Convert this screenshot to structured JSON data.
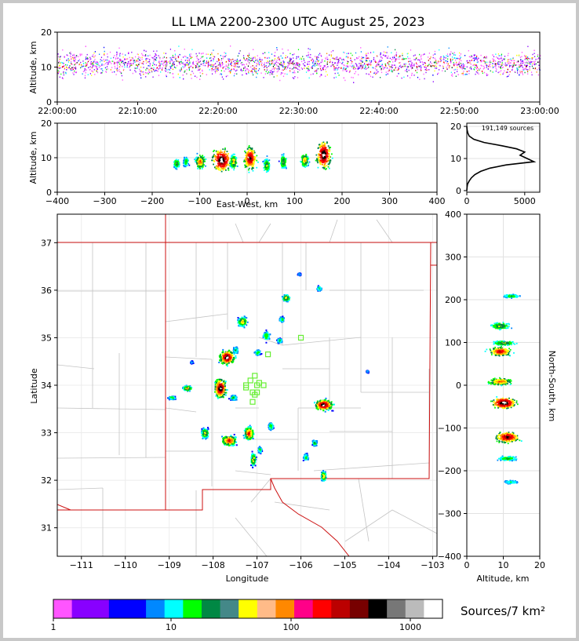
{
  "title": "LL LMA 2200-2300 UTC August 25, 2023",
  "colorbar": {
    "label": "Sources/7 km²",
    "tick_labels": [
      "1",
      "10",
      "100",
      "1000"
    ],
    "colors": [
      "#ff55ff",
      "#8800ff",
      "#8800ff",
      "#0000ff",
      "#0000ff",
      "#0088ff",
      "#00ffff",
      "#00ff00",
      "#008844",
      "#448888",
      "#ffff00",
      "#ffbb88",
      "#ff8800",
      "#ff0088",
      "#ff0000",
      "#bb0000",
      "#770000",
      "#000000",
      "#777777",
      "#bbbbbb",
      "#ffffff"
    ]
  },
  "chart_data": [
    {
      "type": "heatmap",
      "name": "time-altitude",
      "ylabel": "Altitude, km",
      "ylim": [
        0,
        20
      ],
      "y_ticks": [
        "0",
        "10",
        "20"
      ],
      "x_ticks": [
        "22:00:00",
        "22:10:00",
        "22:20:00",
        "22:30:00",
        "22:40:00",
        "22:50:00",
        "23:00:00"
      ]
    },
    {
      "type": "heatmap",
      "name": "east-west-altitude",
      "xlabel": "East-West, km",
      "ylabel": "Altitude, km",
      "xlim": [
        -400,
        400
      ],
      "ylim": [
        0,
        20
      ],
      "x_ticks": [
        "−400",
        "−300",
        "−200",
        "−100",
        "0",
        "100",
        "200",
        "300",
        "400"
      ],
      "y_ticks": [
        "0",
        "10",
        "20"
      ]
    },
    {
      "type": "line",
      "name": "altitude-histogram",
      "annotation": "191,149 sources",
      "x_ticks": [
        "0",
        "5000"
      ],
      "y_ticks": [
        "0",
        "10",
        "20"
      ],
      "xlim": [
        0,
        6300
      ],
      "ylim": [
        -0.5,
        21
      ],
      "points": [
        [
          0,
          0
        ],
        [
          20,
          1
        ],
        [
          60,
          2
        ],
        [
          200,
          3
        ],
        [
          400,
          4
        ],
        [
          700,
          5
        ],
        [
          1200,
          6
        ],
        [
          2000,
          7
        ],
        [
          3400,
          8
        ],
        [
          5800,
          9
        ],
        [
          5200,
          10
        ],
        [
          4600,
          11
        ],
        [
          5000,
          12
        ],
        [
          4300,
          13
        ],
        [
          3000,
          14
        ],
        [
          1500,
          15
        ],
        [
          600,
          16
        ],
        [
          200,
          17
        ],
        [
          80,
          18
        ],
        [
          20,
          19
        ],
        [
          0,
          20
        ]
      ]
    },
    {
      "type": "heatmap",
      "name": "plan-view",
      "xlabel": "Longitude",
      "ylabel": "Latitude",
      "xlim": [
        -111.55,
        -102.9
      ],
      "ylim": [
        30.4,
        37.6
      ],
      "x_ticks": [
        "−111",
        "−110",
        "−109",
        "−108",
        "−107",
        "−106",
        "−105",
        "−104",
        "−103"
      ],
      "y_ticks": [
        "31",
        "32",
        "33",
        "34",
        "35",
        "36",
        "37"
      ],
      "stations": [
        [
          -107.25,
          33.95
        ],
        [
          -107.15,
          34.1
        ],
        [
          -107.0,
          34.0
        ],
        [
          -107.05,
          34.2
        ],
        [
          -106.85,
          34.0
        ],
        [
          -107.1,
          33.85
        ],
        [
          -107.25,
          34.0
        ],
        [
          -107.0,
          33.85
        ],
        [
          -106.95,
          34.05
        ],
        [
          -107.05,
          33.8
        ],
        [
          -107.1,
          33.65
        ],
        [
          -106.75,
          34.65
        ],
        [
          -106.0,
          35.0
        ]
      ],
      "cells": [
        [
          -107.7,
          34.6,
          0.25,
          0.22,
          5
        ],
        [
          -107.85,
          33.95,
          0.2,
          0.3,
          5
        ],
        [
          -105.5,
          33.6,
          0.3,
          0.16,
          5
        ],
        [
          -107.65,
          32.85,
          0.25,
          0.16,
          4
        ],
        [
          -107.2,
          33.0,
          0.15,
          0.2,
          4
        ],
        [
          -108.2,
          33.0,
          0.12,
          0.15,
          3
        ],
        [
          -107.35,
          35.35,
          0.15,
          0.15,
          3
        ],
        [
          -108.6,
          33.95,
          0.15,
          0.08,
          3
        ],
        [
          -108.95,
          33.75,
          0.12,
          0.05,
          2
        ],
        [
          -107.1,
          32.45,
          0.08,
          0.2,
          3
        ],
        [
          -106.8,
          35.05,
          0.12,
          0.15,
          2
        ],
        [
          -106.35,
          35.85,
          0.12,
          0.1,
          3
        ],
        [
          -105.6,
          36.05,
          0.07,
          0.07,
          2
        ],
        [
          -106.45,
          35.4,
          0.08,
          0.08,
          2
        ],
        [
          -106.5,
          34.95,
          0.08,
          0.07,
          2
        ],
        [
          -105.5,
          32.1,
          0.08,
          0.15,
          3
        ],
        [
          -105.7,
          32.8,
          0.08,
          0.1,
          2
        ],
        [
          -105.9,
          32.5,
          0.08,
          0.1,
          2
        ],
        [
          -107.55,
          33.75,
          0.12,
          0.08,
          2
        ],
        [
          -107.0,
          34.7,
          0.1,
          0.08,
          2
        ],
        [
          -107.5,
          34.75,
          0.08,
          0.1,
          2
        ],
        [
          -106.7,
          33.15,
          0.08,
          0.12,
          2
        ],
        [
          -106.95,
          32.65,
          0.06,
          0.1,
          2
        ],
        [
          -108.5,
          34.5,
          0.05,
          0.04,
          1
        ],
        [
          -104.5,
          34.3,
          0.04,
          0.04,
          1
        ],
        [
          -106.05,
          36.35,
          0.05,
          0.04,
          1
        ]
      ]
    },
    {
      "type": "heatmap",
      "name": "altitude-north-south",
      "xlabel": "Altitude, km",
      "ylabel": "North-South, km",
      "xlim": [
        0,
        20
      ],
      "ylim": [
        -400,
        400
      ],
      "x_ticks": [
        "0",
        "10",
        "20"
      ],
      "y_ticks": [
        "−400",
        "−300",
        "−200",
        "−100",
        "0",
        "100",
        "200",
        "300",
        "400"
      ]
    }
  ]
}
